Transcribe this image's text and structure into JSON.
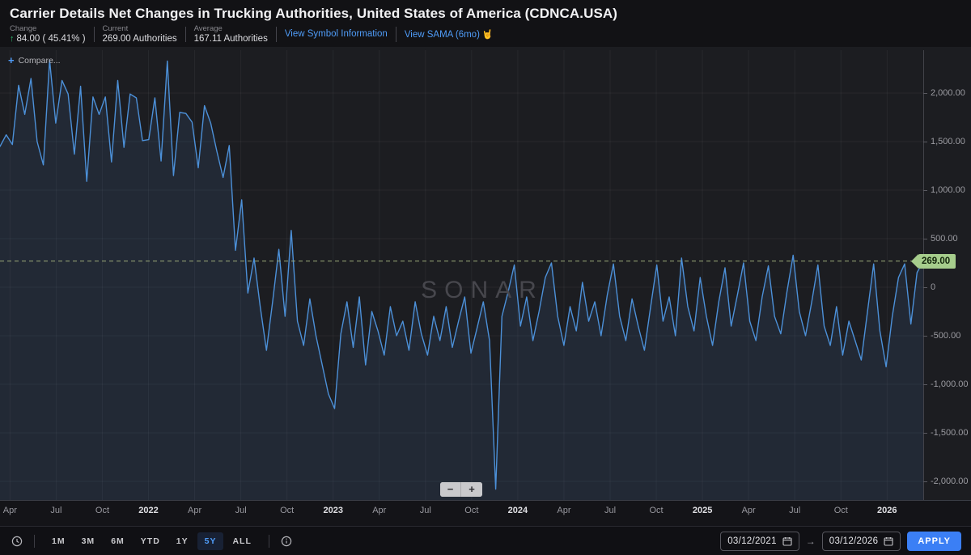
{
  "header": {
    "title": "Carrier Details Net Changes in Trucking Authorities, United States of America (CDNCA.USA)",
    "change": {
      "label": "Change",
      "arrow": "↑",
      "value": "84.00 ( 45.41% )"
    },
    "current": {
      "label": "Current",
      "value": "269.00 Authorities"
    },
    "average": {
      "label": "Average",
      "value": "167.11 Authorities"
    },
    "links": [
      {
        "label": "View Symbol Information"
      },
      {
        "label": "View SAMA (6mo)",
        "emoji": "🤘"
      }
    ]
  },
  "chart": {
    "compare_plus": "+",
    "compare_label": "Compare...",
    "watermark": "SONAR",
    "zoom_out_label": "−",
    "zoom_in_label": "+"
  },
  "chart_data": {
    "type": "area",
    "symbol": "CDNCA.USA",
    "title": "Carrier Details Net Changes in Trucking Authorities, United States of America",
    "ylabel": "Authorities",
    "ylim": [
      -2340,
      2450
    ],
    "x_range_months": 60,
    "x_start": "03/12/2021",
    "x_end": "03/12/2026",
    "grid": true,
    "current_value": 269,
    "current_label": "269.00",
    "average_value": 167.11,
    "y_ticks": [
      {
        "label": "2,000.00",
        "v": 2000
      },
      {
        "label": "1,500.00",
        "v": 1500
      },
      {
        "label": "1,000.00",
        "v": 1000
      },
      {
        "label": "500.00",
        "v": 500
      },
      {
        "label": "0",
        "v": 0
      },
      {
        "label": "-500.00",
        "v": -500
      },
      {
        "label": "-1,000.00",
        "v": -1000
      },
      {
        "label": "-1,500.00",
        "v": -1500
      },
      {
        "label": "-2,000.00",
        "v": -2000
      }
    ],
    "x_ticks": [
      {
        "label": "Apr",
        "m": 0.65
      },
      {
        "label": "Jul",
        "m": 3.65
      },
      {
        "label": "Oct",
        "m": 6.65
      },
      {
        "label": "2022",
        "m": 9.65,
        "year": true
      },
      {
        "label": "Apr",
        "m": 12.65
      },
      {
        "label": "Jul",
        "m": 15.65
      },
      {
        "label": "Oct",
        "m": 18.65
      },
      {
        "label": "2023",
        "m": 21.65,
        "year": true
      },
      {
        "label": "Apr",
        "m": 24.65
      },
      {
        "label": "Jul",
        "m": 27.65
      },
      {
        "label": "Oct",
        "m": 30.65
      },
      {
        "label": "2024",
        "m": 33.65,
        "year": true
      },
      {
        "label": "Apr",
        "m": 36.65
      },
      {
        "label": "Jul",
        "m": 39.65
      },
      {
        "label": "Oct",
        "m": 42.65
      },
      {
        "label": "2025",
        "m": 45.65,
        "year": true
      },
      {
        "label": "Apr",
        "m": 48.65
      },
      {
        "label": "Jul",
        "m": 51.65
      },
      {
        "label": "Oct",
        "m": 54.65
      },
      {
        "label": "2026",
        "m": 57.65,
        "year": true
      }
    ],
    "series": [
      {
        "name": "Net Changes in Trucking Authorities (weekly)",
        "values": [
          1450,
          1570,
          1470,
          2080,
          1780,
          2150,
          1500,
          1260,
          2340,
          1690,
          2130,
          1990,
          1370,
          2070,
          1090,
          1960,
          1780,
          1960,
          1290,
          2130,
          1440,
          1990,
          1950,
          1510,
          1520,
          1950,
          1300,
          2330,
          1150,
          1800,
          1790,
          1700,
          1230,
          1870,
          1690,
          1400,
          1130,
          1460,
          380,
          900,
          -60,
          300,
          -200,
          -650,
          -150,
          390,
          -300,
          585,
          -350,
          -600,
          -120,
          -500,
          -800,
          -1100,
          -1250,
          -480,
          -150,
          -620,
          -100,
          -800,
          -250,
          -450,
          -700,
          -200,
          -500,
          -350,
          -650,
          -150,
          -480,
          -700,
          -300,
          -550,
          -200,
          -620,
          -350,
          -100,
          -680,
          -420,
          -150,
          -550,
          -2080,
          -300,
          -50,
          230,
          -400,
          -100,
          -550,
          -250,
          100,
          250,
          -300,
          -600,
          -200,
          -450,
          50,
          -350,
          -150,
          -500,
          -80,
          240,
          -300,
          -550,
          -120,
          -400,
          -650,
          -200,
          230,
          -350,
          -100,
          -500,
          300,
          -200,
          -450,
          100,
          -300,
          -600,
          -150,
          200,
          -400,
          -80,
          250,
          -350,
          -550,
          -100,
          220,
          -300,
          -480,
          -50,
          330,
          -250,
          -500,
          -150,
          230,
          -400,
          -600,
          -200,
          -700,
          -350,
          -550,
          -750,
          -250,
          240,
          -450,
          -820,
          -300,
          100,
          240,
          -380,
          150,
          269
        ]
      }
    ]
  },
  "toolbar": {
    "periods": [
      "1M",
      "3M",
      "6M",
      "YTD",
      "1Y",
      "5Y",
      "ALL"
    ],
    "selected_period": "5Y",
    "date_from": "03/12/2021",
    "date_to": "03/12/2026",
    "range_arrow": "→",
    "apply_label": "APPLY"
  },
  "colors": {
    "line": "#4c90d8",
    "area_fill": "rgba(66,103,160,0.16)",
    "dashed_current": "#9aa878",
    "badge_bg": "#a6cd8c",
    "accent_blue": "#4f9cf8",
    "apply_bg": "#3b7ff5",
    "up_green": "#2fbf71",
    "grid": "rgba(255,255,255,0.05)"
  }
}
